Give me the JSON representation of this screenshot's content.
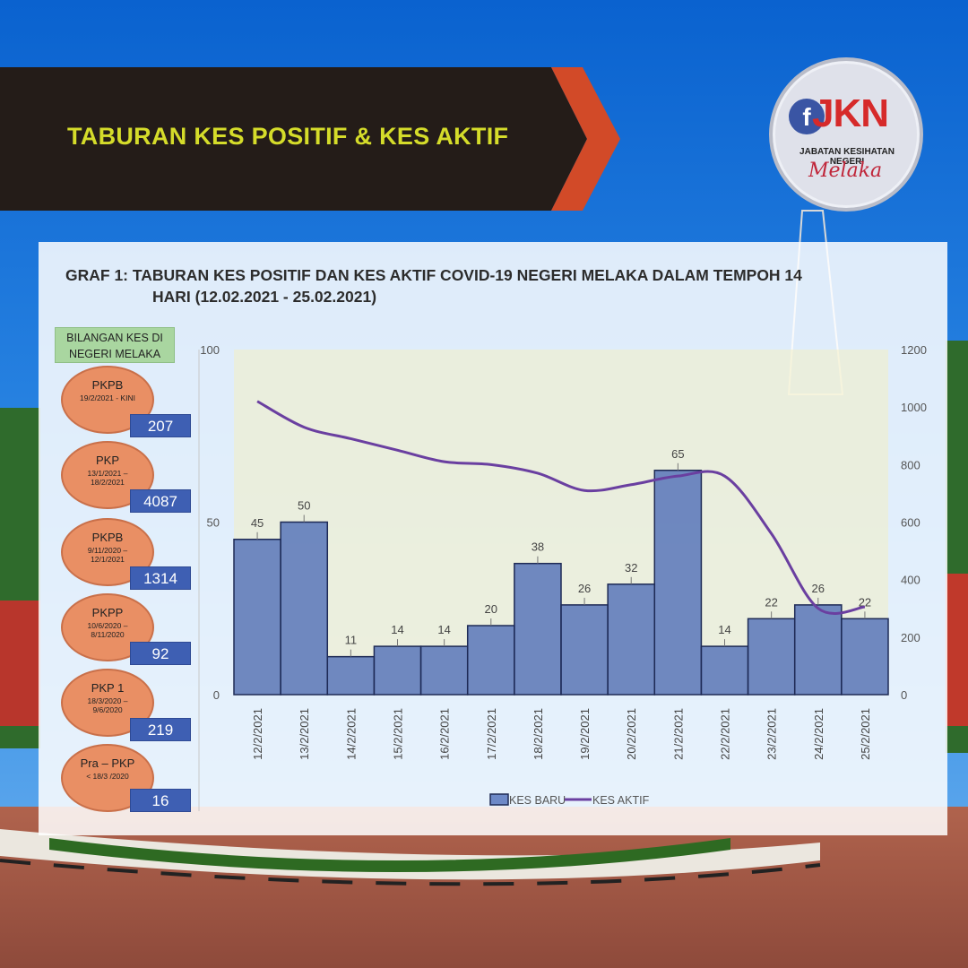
{
  "banner": {
    "title": "TABURAN KES POSITIF & KES AKTIF"
  },
  "logo": {
    "icon": "facebook-f-icon",
    "brand": "JKN",
    "subtitle": "JABATAN KESIHATAN NEGERI",
    "script": "Melaka"
  },
  "side_panel": {
    "header": "BILANGAN KES DI NEGERI MELAKA",
    "phases": [
      {
        "name": "PKPB",
        "date": "19/2/2021 - KINI",
        "count": "207"
      },
      {
        "name": "PKP",
        "date": "13/1/2021 – 18/2/2021",
        "count": "4087"
      },
      {
        "name": "PKPB",
        "date": "9/11/2020 – 12/1/2021",
        "count": "1314"
      },
      {
        "name": "PKPP",
        "date": "10/6/2020 – 8/11/2020",
        "count": "92"
      },
      {
        "name": "PKP 1",
        "date": "18/3/2020 – 9/6/2020",
        "count": "219"
      },
      {
        "name": "Pra – PKP",
        "date": "< 18/3 /2020",
        "count": "16"
      }
    ]
  },
  "chart_data": {
    "type": "bar",
    "title": "GRAF 1: TABURAN KES POSITIF DAN KES AKTIF COVID-19 NEGERI MELAKA DALAM TEMPOH 14",
    "title_line2": "HARI (12.02.2021 - 25.02.2021)",
    "categories": [
      "12/2/2021",
      "13/2/2021",
      "14/2/2021",
      "15/2/2021",
      "16/2/2021",
      "17/2/2021",
      "18/2/2021",
      "19/2/2021",
      "20/2/2021",
      "21/2/2021",
      "22/2/2021",
      "23/2/2021",
      "24/2/2021",
      "25/2/2021"
    ],
    "series": [
      {
        "name": "KES BARU",
        "type": "bar",
        "axis": "left",
        "values": [
          45,
          50,
          11,
          14,
          14,
          20,
          38,
          26,
          32,
          65,
          14,
          22,
          26,
          22
        ],
        "color": "#3e5fb3"
      },
      {
        "name": "KES AKTIF",
        "type": "line",
        "axis": "right",
        "values": [
          1020,
          930,
          890,
          850,
          810,
          800,
          770,
          710,
          730,
          760,
          760,
          560,
          300,
          305
        ],
        "color": "#6a3fa0"
      }
    ],
    "y_left": {
      "min": 0,
      "max": 100,
      "ticks": [
        "0",
        "50",
        "100"
      ]
    },
    "y_right": {
      "min": 0,
      "max": 1200,
      "ticks": [
        "0",
        "200",
        "400",
        "600",
        "800",
        "1000",
        "1200"
      ]
    },
    "legend": {
      "position": "bottom",
      "entries": [
        "KES BARU",
        "KES AKTIF"
      ]
    },
    "grid": false
  }
}
